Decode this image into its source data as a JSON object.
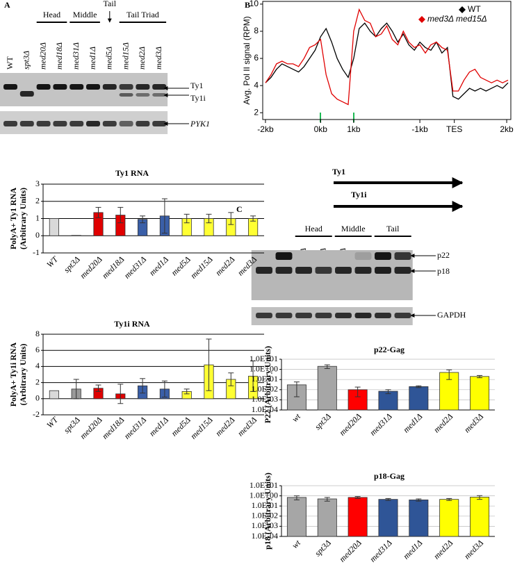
{
  "panel_labels": [
    "A",
    "B",
    "C"
  ],
  "gel_a": {
    "groups": [
      "Head",
      "Middle",
      "Tail",
      "Tail Triad"
    ],
    "lanes": [
      "WT",
      "spt3Δ",
      "med20Δ",
      "med18Δ",
      "med31Δ",
      "med1Δ",
      "med5Δ",
      "med15Δ",
      "med2Δ",
      "med3Δ"
    ],
    "band_labels": [
      "Ty1",
      "Ty1i",
      "PYK1"
    ]
  },
  "gene_arrows": [
    "Ty1",
    "Ty1i"
  ],
  "gel_c": {
    "groups": [
      "Head",
      "Middle",
      "Tail"
    ],
    "lanes": [
      "WT",
      "spt3Δ",
      "med20Δ",
      "med18Δ",
      "med31Δ",
      "med1Δ",
      "med2Δ",
      "med3Δ"
    ],
    "band_labels": [
      "p22",
      "p18",
      "GAPDH"
    ]
  },
  "chart_data": [
    {
      "type": "bar",
      "title": "Ty1 RNA",
      "y_label": [
        "PolyA+ Ty1 RNA",
        "(Arbitrary Units)"
      ],
      "categories": [
        "WT",
        "spt3Δ",
        "med20Δ",
        "med18Δ",
        "med31Δ",
        "med1Δ",
        "med5Δ",
        "med15Δ",
        "med2Δ",
        "med3Δ"
      ],
      "values": [
        1,
        0.02,
        1.35,
        1.2,
        0.95,
        1.15,
        1.0,
        1.0,
        1.0,
        1.0
      ],
      "errors": [
        null,
        null,
        0.3,
        0.45,
        0.2,
        1.0,
        0.25,
        0.25,
        0.35,
        0.15
      ],
      "colors": [
        "#d9d9d9",
        "#999999",
        "#e00000",
        "#e00000",
        "#3a5fa8",
        "#3a5fa8",
        "#ffff33",
        "#ffff33",
        "#ffff33",
        "#ffff33"
      ],
      "ylim": [
        -1,
        3
      ],
      "yticks": [
        -1,
        0,
        1,
        2,
        3
      ],
      "grid": true,
      "log": false
    },
    {
      "type": "bar",
      "title": "Ty1i RNA",
      "y_label": [
        "PolyA+ Ty1i RNA",
        "(Arbitrary Units)"
      ],
      "categories": [
        "WT",
        "spt3Δ",
        "med20Δ",
        "med18Δ",
        "med31Δ",
        "med1Δ",
        "med5Δ",
        "med15Δ",
        "med2Δ",
        "med3Δ"
      ],
      "values": [
        1.0,
        1.2,
        1.3,
        0.6,
        1.6,
        1.2,
        0.9,
        4.2,
        2.4,
        2.8
      ],
      "errors": [
        null,
        1.2,
        0.4,
        1.2,
        0.9,
        1.0,
        0.3,
        3.2,
        0.8,
        1.9
      ],
      "colors": [
        "#d9d9d9",
        "#999999",
        "#e00000",
        "#e00000",
        "#3a5fa8",
        "#3a5fa8",
        "#ffff33",
        "#ffff33",
        "#ffff33",
        "#ffff33"
      ],
      "ylim": [
        -2,
        8
      ],
      "yticks": [
        -2,
        0,
        2,
        4,
        6,
        8
      ],
      "grid": true,
      "log": false
    },
    {
      "type": "line",
      "y_label": "Avg. Pol II signal (RPM)",
      "x": [
        0,
        0.2,
        0.4,
        0.6,
        0.8,
        1.0,
        1.2,
        1.4,
        1.6,
        1.8,
        2.0,
        2.2,
        2.4,
        2.6,
        2.8,
        3.0,
        3.2,
        3.4,
        3.6,
        3.8,
        4.0,
        4.2,
        4.4,
        4.6,
        4.8,
        5.0,
        5.2,
        5.4,
        5.6,
        5.8,
        6.0,
        6.2,
        6.4,
        6.6,
        6.8,
        7.0,
        7.2,
        7.4,
        7.6,
        7.8,
        8.0,
        8.2,
        8.4,
        8.6,
        8.8
      ],
      "series": [
        {
          "name": "WT",
          "color": "#000000",
          "values": [
            4.2,
            4.6,
            5.2,
            5.6,
            5.4,
            5.2,
            5.0,
            5.4,
            6.0,
            6.6,
            7.6,
            8.2,
            7.2,
            6.0,
            5.2,
            4.6,
            6.0,
            8.2,
            8.6,
            8.0,
            7.6,
            8.2,
            8.6,
            8.0,
            7.2,
            7.8,
            7.0,
            6.6,
            7.2,
            6.8,
            6.6,
            7.2,
            6.4,
            6.8,
            3.2,
            3.0,
            3.4,
            3.8,
            3.6,
            3.8,
            3.6,
            3.8,
            4.0,
            3.8,
            4.2
          ]
        },
        {
          "name": "med3Δ med15Δ",
          "color": "#e00000",
          "values": [
            4.2,
            4.8,
            5.6,
            5.8,
            5.6,
            5.6,
            5.4,
            6.0,
            6.8,
            7.0,
            7.4,
            4.8,
            3.4,
            3.0,
            2.8,
            2.6,
            8.0,
            9.6,
            8.8,
            8.6,
            7.6,
            7.8,
            8.4,
            7.4,
            7.0,
            8.0,
            7.2,
            6.8,
            7.0,
            6.4,
            7.0,
            7.2,
            6.8,
            6.6,
            3.6,
            3.6,
            4.4,
            5.0,
            5.2,
            4.6,
            4.4,
            4.2,
            4.4,
            4.2,
            4.4
          ]
        }
      ],
      "xlim": [
        -0.1,
        8.9
      ],
      "xticks": [
        {
          "value": 0,
          "label": "-2kb"
        },
        {
          "value": 2.0,
          "label": "0kb"
        },
        {
          "value": 3.2,
          "label": "1kb"
        },
        {
          "value": 5.6,
          "label": "-1kb"
        },
        {
          "value": 6.85,
          "label": "TES"
        },
        {
          "value": 8.75,
          "label": "2kb"
        }
      ],
      "ylim": [
        1.5,
        10.2
      ],
      "yticks": [
        2,
        4,
        6,
        8,
        10
      ],
      "legend": "top-right"
    },
    {
      "type": "bar",
      "title": "p22-Gag",
      "y_label": [
        "P22 (Arbitrary Units)"
      ],
      "categories": [
        "wt",
        "spt3Δ",
        "med20Δ",
        "med31Δ",
        "med1Δ",
        "med2Δ",
        "med3Δ"
      ],
      "values": [
        0.03,
        2.0,
        0.01,
        0.007,
        0.02,
        0.5,
        0.2
      ],
      "errors": [
        0.028,
        0.8,
        0.008,
        0.003,
        0.004,
        0.4,
        0.05
      ],
      "colors": [
        "#a6a6a6",
        "#a6a6a6",
        "#ff0000",
        "#2f5597",
        "#2f5597",
        "#ffff00",
        "#ffff00"
      ],
      "ylim": [
        0.0001,
        10
      ],
      "yticks": [
        {
          "value": 0.0001,
          "label": "1.0E-04"
        },
        {
          "value": 0.001,
          "label": "1.0E-03"
        },
        {
          "value": 0.01,
          "label": "1.0E-02"
        },
        {
          "value": 0.1,
          "label": "1.0E-01"
        },
        {
          "value": 1,
          "label": "1.0E+00"
        },
        {
          "value": 10,
          "label": "1.0E+01"
        }
      ],
      "grid": true,
      "log": true
    },
    {
      "type": "bar",
      "title": "p18-Gag",
      "y_label": [
        "p18 (Arbitrary Units)"
      ],
      "categories": [
        "wt",
        "spt3Δ",
        "med20Δ",
        "med31Δ",
        "med1Δ",
        "med2Δ",
        "med3Δ"
      ],
      "values": [
        0.7,
        0.5,
        0.7,
        0.45,
        0.4,
        0.45,
        0.75
      ],
      "errors": [
        0.3,
        0.2,
        0.15,
        0.1,
        0.1,
        0.1,
        0.3
      ],
      "colors": [
        "#a6a6a6",
        "#a6a6a6",
        "#ff0000",
        "#2f5597",
        "#2f5597",
        "#ffff00",
        "#ffff00"
      ],
      "ylim": [
        0.0001,
        10
      ],
      "yticks": [
        {
          "value": 0.0001,
          "label": "1.0E-04"
        },
        {
          "value": 0.001,
          "label": "1.0E-03"
        },
        {
          "value": 0.01,
          "label": "1.0E-02"
        },
        {
          "value": 0.1,
          "label": "1.0E-01"
        },
        {
          "value": 1,
          "label": "1.0E+00"
        },
        {
          "value": 10,
          "label": "1.0E+01"
        }
      ],
      "grid": true,
      "log": true
    }
  ]
}
